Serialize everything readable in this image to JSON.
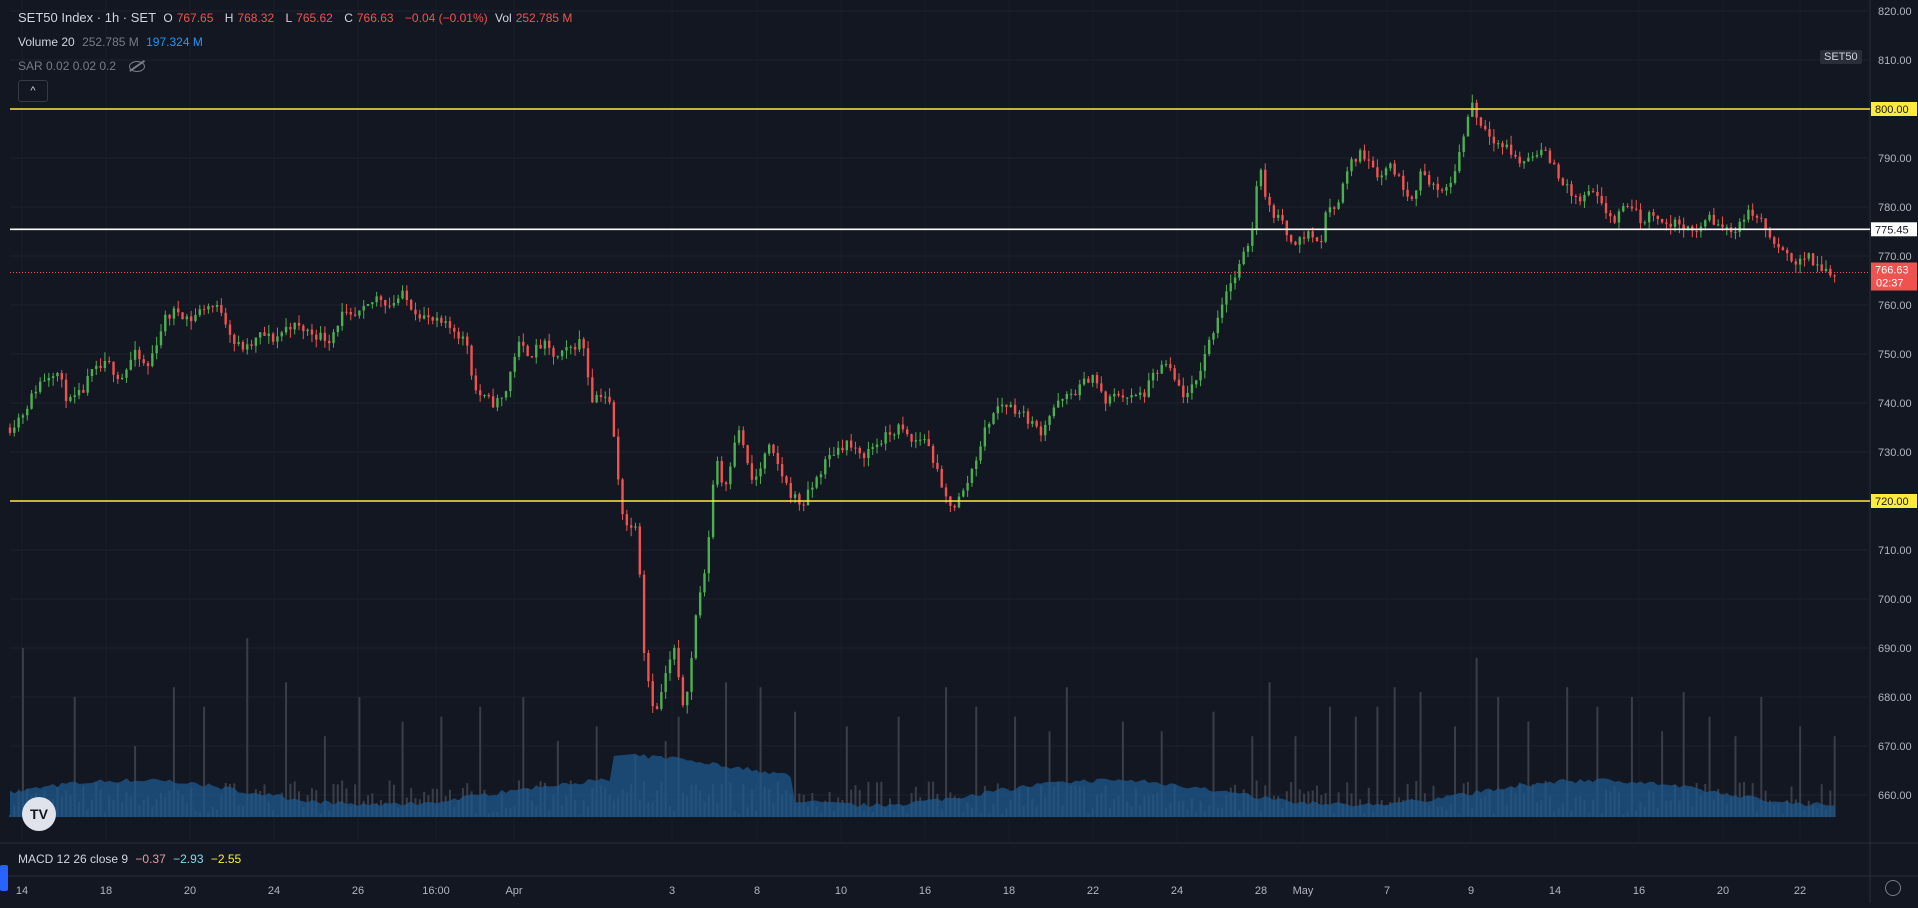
{
  "header": {
    "symbol": "SET50 Index · 1h · SET",
    "ohlc": [
      {
        "k": "O",
        "v": "767.65"
      },
      {
        "k": "H",
        "v": "768.32"
      },
      {
        "k": "L",
        "v": "765.62"
      },
      {
        "k": "C",
        "v": "766.63"
      }
    ],
    "change": "−0.04 (−0.01%)",
    "vol_label": "Vol",
    "vol_value": "252.785 M"
  },
  "volume_indicator": {
    "label": "Volume 20",
    "value1": "252.785 M",
    "value2": "197.324 M"
  },
  "sar_indicator": {
    "label": "SAR 0.02 0.02 0.2"
  },
  "macd_indicator": {
    "label": "MACD 12 26 close 9",
    "v1": "−0.37",
    "v2": "−2.93",
    "v3": "−2.55"
  },
  "collapse_button": "^",
  "symbol_badge": "SET50",
  "logo_text": "TV",
  "colors": {
    "background": "#131722",
    "up": "#26a69a",
    "down": "#ef5350",
    "hline_yellow": "#ffeb3b",
    "hline_white": "#ffffff",
    "volume_ma": "#1e5a8e"
  },
  "chart_data": {
    "type": "candlestick",
    "y_axis": {
      "min": 655,
      "max": 822,
      "ticks": [
        660,
        670,
        680,
        690,
        700,
        710,
        720,
        730,
        740,
        750,
        760,
        770,
        780,
        790,
        800,
        810,
        820
      ]
    },
    "x_ticks": [
      "14",
      "18",
      "20",
      "24",
      "26",
      "16:00",
      "Apr",
      "3",
      "8",
      "10",
      "16",
      "18",
      "22",
      "24",
      "28",
      "May",
      "7",
      "9",
      "14",
      "16",
      "20",
      "22"
    ],
    "horizontal_lines": [
      {
        "price": 800.0,
        "label": "800.00",
        "color": "#ffeb3b"
      },
      {
        "price": 775.45,
        "label": "775.45",
        "color": "#ffffff"
      },
      {
        "price": 720.0,
        "label": "720.00",
        "color": "#ffeb3b"
      }
    ],
    "last_price": {
      "price": 766.63,
      "label": "766.63",
      "countdown": "02:37"
    },
    "close_path": [
      [
        0,
        735
      ],
      [
        10,
        738
      ],
      [
        22,
        744
      ],
      [
        35,
        747
      ],
      [
        45,
        740
      ],
      [
        55,
        742
      ],
      [
        62,
        746
      ],
      [
        75,
        748
      ],
      [
        85,
        745
      ],
      [
        95,
        750
      ],
      [
        105,
        747
      ],
      [
        118,
        757
      ],
      [
        128,
        759
      ],
      [
        138,
        757
      ],
      [
        150,
        760
      ],
      [
        162,
        759
      ],
      [
        172,
        752
      ],
      [
        182,
        751
      ],
      [
        192,
        754
      ],
      [
        202,
        753
      ],
      [
        214,
        756
      ],
      [
        224,
        755
      ],
      [
        234,
        754
      ],
      [
        244,
        753
      ],
      [
        254,
        758
      ],
      [
        262,
        757
      ],
      [
        272,
        759
      ],
      [
        282,
        762
      ],
      [
        290,
        760
      ],
      [
        300,
        762
      ],
      [
        310,
        759
      ],
      [
        320,
        757
      ],
      [
        330,
        756
      ],
      [
        340,
        755
      ],
      [
        350,
        752
      ],
      [
        355,
        743
      ],
      [
        362,
        741
      ],
      [
        370,
        740
      ],
      [
        378,
        741
      ],
      [
        388,
        752
      ],
      [
        398,
        750
      ],
      [
        408,
        752
      ],
      [
        418,
        749
      ],
      [
        428,
        751
      ],
      [
        438,
        753
      ],
      [
        445,
        741
      ],
      [
        452,
        742
      ],
      [
        458,
        741
      ],
      [
        462,
        733
      ],
      [
        466,
        722
      ],
      [
        470,
        716
      ],
      [
        473,
        715
      ],
      [
        476,
        714
      ],
      [
        480,
        717
      ],
      [
        484,
        692
      ],
      [
        488,
        684
      ],
      [
        494,
        676
      ],
      [
        500,
        683
      ],
      [
        508,
        690
      ],
      [
        514,
        678
      ],
      [
        520,
        684
      ],
      [
        526,
        700
      ],
      [
        532,
        705
      ],
      [
        540,
        730
      ],
      [
        546,
        722
      ],
      [
        552,
        729
      ],
      [
        556,
        735
      ],
      [
        562,
        731
      ],
      [
        566,
        724
      ],
      [
        572,
        725
      ],
      [
        580,
        731
      ],
      [
        588,
        727
      ],
      [
        596,
        722
      ],
      [
        606,
        719
      ],
      [
        616,
        724
      ],
      [
        624,
        728
      ],
      [
        630,
        730
      ],
      [
        640,
        732
      ],
      [
        650,
        729
      ],
      [
        660,
        731
      ],
      [
        670,
        733
      ],
      [
        680,
        735
      ],
      [
        690,
        732
      ],
      [
        700,
        733
      ],
      [
        707,
        728
      ],
      [
        714,
        721
      ],
      [
        722,
        719
      ],
      [
        730,
        722
      ],
      [
        738,
        728
      ],
      [
        748,
        736
      ],
      [
        758,
        740
      ],
      [
        768,
        739
      ],
      [
        778,
        737
      ],
      [
        788,
        734
      ],
      [
        798,
        739
      ],
      [
        808,
        741
      ],
      [
        818,
        743
      ],
      [
        828,
        746
      ],
      [
        838,
        740
      ],
      [
        848,
        742
      ],
      [
        858,
        741
      ],
      [
        868,
        742
      ],
      [
        876,
        746
      ],
      [
        884,
        748
      ],
      [
        892,
        744
      ],
      [
        900,
        741
      ],
      [
        907,
        744
      ],
      [
        914,
        750
      ],
      [
        922,
        756
      ],
      [
        930,
        763
      ],
      [
        938,
        766
      ],
      [
        944,
        770
      ],
      [
        950,
        775
      ],
      [
        956,
        790
      ],
      [
        962,
        780
      ],
      [
        970,
        778
      ],
      [
        978,
        774
      ],
      [
        986,
        773
      ],
      [
        994,
        775
      ],
      [
        1002,
        772
      ],
      [
        1008,
        780
      ],
      [
        1016,
        781
      ],
      [
        1024,
        788
      ],
      [
        1032,
        791
      ],
      [
        1040,
        790
      ],
      [
        1048,
        786
      ],
      [
        1056,
        789
      ],
      [
        1064,
        785
      ],
      [
        1072,
        782
      ],
      [
        1080,
        787
      ],
      [
        1088,
        785
      ],
      [
        1095,
        782
      ],
      [
        1102,
        785
      ],
      [
        1110,
        792
      ],
      [
        1118,
        802
      ],
      [
        1124,
        797
      ],
      [
        1130,
        796
      ],
      [
        1138,
        793
      ],
      [
        1146,
        792
      ],
      [
        1154,
        789
      ],
      [
        1162,
        790
      ],
      [
        1170,
        792
      ],
      [
        1180,
        789
      ],
      [
        1190,
        784
      ],
      [
        1200,
        781
      ],
      [
        1210,
        783
      ],
      [
        1218,
        780
      ],
      [
        1228,
        777
      ],
      [
        1238,
        781
      ],
      [
        1248,
        777
      ],
      [
        1258,
        779
      ],
      [
        1268,
        776
      ],
      [
        1278,
        777
      ],
      [
        1288,
        774
      ],
      [
        1298,
        778
      ],
      [
        1308,
        776
      ],
      [
        1318,
        775
      ],
      [
        1326,
        778
      ],
      [
        1334,
        779
      ],
      [
        1342,
        776
      ],
      [
        1350,
        772
      ],
      [
        1358,
        770
      ],
      [
        1366,
        769
      ],
      [
        1374,
        770
      ],
      [
        1382,
        768
      ],
      [
        1390,
        767
      ],
      [
        1396,
        766.63
      ]
    ],
    "volume_spikes": [
      [
        10,
        690
      ],
      [
        50,
        680
      ],
      [
        95,
        670
      ],
      [
        124,
        682
      ],
      [
        150,
        678
      ],
      [
        180,
        692
      ],
      [
        210,
        683
      ],
      [
        240,
        672
      ],
      [
        268,
        680
      ],
      [
        300,
        675
      ],
      [
        330,
        676
      ],
      [
        360,
        678
      ],
      [
        392,
        680
      ],
      [
        420,
        671
      ],
      [
        450,
        674
      ],
      [
        478,
        668
      ],
      [
        500,
        671
      ],
      [
        512,
        676
      ],
      [
        548,
        683
      ],
      [
        575,
        682
      ],
      [
        600,
        677
      ],
      [
        640,
        674
      ],
      [
        680,
        676
      ],
      [
        716,
        682
      ],
      [
        740,
        678
      ],
      [
        770,
        676
      ],
      [
        794,
        673
      ],
      [
        810,
        682
      ],
      [
        850,
        675
      ],
      [
        880,
        673
      ],
      [
        920,
        677
      ],
      [
        950,
        672
      ],
      [
        965,
        683
      ],
      [
        984,
        672
      ],
      [
        1010,
        678
      ],
      [
        1030,
        676
      ],
      [
        1045,
        678
      ],
      [
        1060,
        682
      ],
      [
        1078,
        681
      ],
      [
        1106,
        674
      ],
      [
        1122,
        688
      ],
      [
        1140,
        680
      ],
      [
        1160,
        675
      ],
      [
        1190,
        682
      ],
      [
        1215,
        678
      ],
      [
        1240,
        680
      ],
      [
        1265,
        673
      ],
      [
        1280,
        681
      ],
      [
        1300,
        676
      ],
      [
        1320,
        672
      ],
      [
        1340,
        680
      ],
      [
        1370,
        674
      ],
      [
        1395,
        672
      ]
    ]
  }
}
